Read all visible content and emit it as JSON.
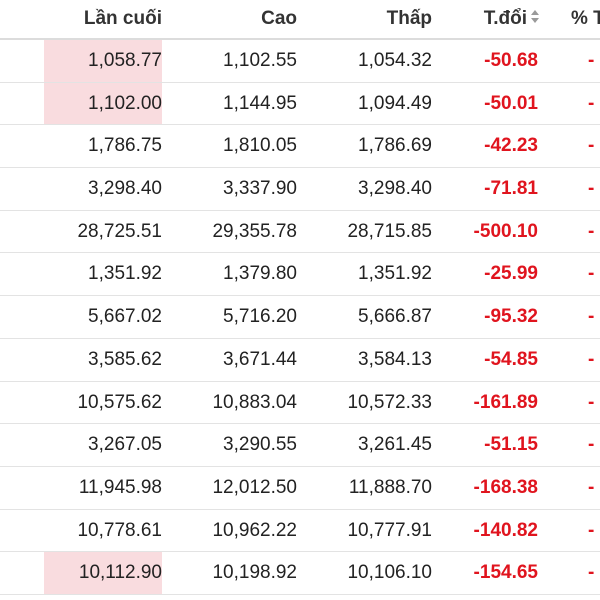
{
  "header": {
    "last": "Lần cuối",
    "high": "Cao",
    "low": "Thấp",
    "change": "T.đổi",
    "pct": "% T"
  },
  "rows": [
    {
      "last": "1,058.77",
      "high": "1,102.55",
      "low": "1,054.32",
      "change": "-50.68",
      "pct": "-",
      "highlight": true
    },
    {
      "last": "1,102.00",
      "high": "1,144.95",
      "low": "1,094.49",
      "change": "-50.01",
      "pct": "-",
      "highlight": true
    },
    {
      "last": "1,786.75",
      "high": "1,810.05",
      "low": "1,786.69",
      "change": "-42.23",
      "pct": "-",
      "highlight": false
    },
    {
      "last": "3,298.40",
      "high": "3,337.90",
      "low": "3,298.40",
      "change": "-71.81",
      "pct": "-",
      "highlight": false
    },
    {
      "last": "28,725.51",
      "high": "29,355.78",
      "low": "28,715.85",
      "change": "-500.10",
      "pct": "-",
      "highlight": false
    },
    {
      "last": "1,351.92",
      "high": "1,379.80",
      "low": "1,351.92",
      "change": "-25.99",
      "pct": "-",
      "highlight": false
    },
    {
      "last": "5,667.02",
      "high": "5,716.20",
      "low": "5,666.87",
      "change": "-95.32",
      "pct": "-",
      "highlight": false
    },
    {
      "last": "3,585.62",
      "high": "3,671.44",
      "low": "3,584.13",
      "change": "-54.85",
      "pct": "-",
      "highlight": false
    },
    {
      "last": "10,575.62",
      "high": "10,883.04",
      "low": "10,572.33",
      "change": "-161.89",
      "pct": "-",
      "highlight": false
    },
    {
      "last": "3,267.05",
      "high": "3,290.55",
      "low": "3,261.45",
      "change": "-51.15",
      "pct": "-",
      "highlight": false
    },
    {
      "last": "11,945.98",
      "high": "12,012.50",
      "low": "11,888.70",
      "change": "-168.38",
      "pct": "-",
      "highlight": false
    },
    {
      "last": "10,778.61",
      "high": "10,962.22",
      "low": "10,777.91",
      "change": "-140.82",
      "pct": "-",
      "highlight": false
    },
    {
      "last": "10,112.90",
      "high": "10,198.92",
      "low": "10,106.10",
      "change": "-154.65",
      "pct": "-",
      "highlight": true
    }
  ],
  "colors": {
    "negative": "#e0141e",
    "highlight_bg": "#f9dcdf"
  },
  "icons": {
    "sort": "sort-icon"
  }
}
